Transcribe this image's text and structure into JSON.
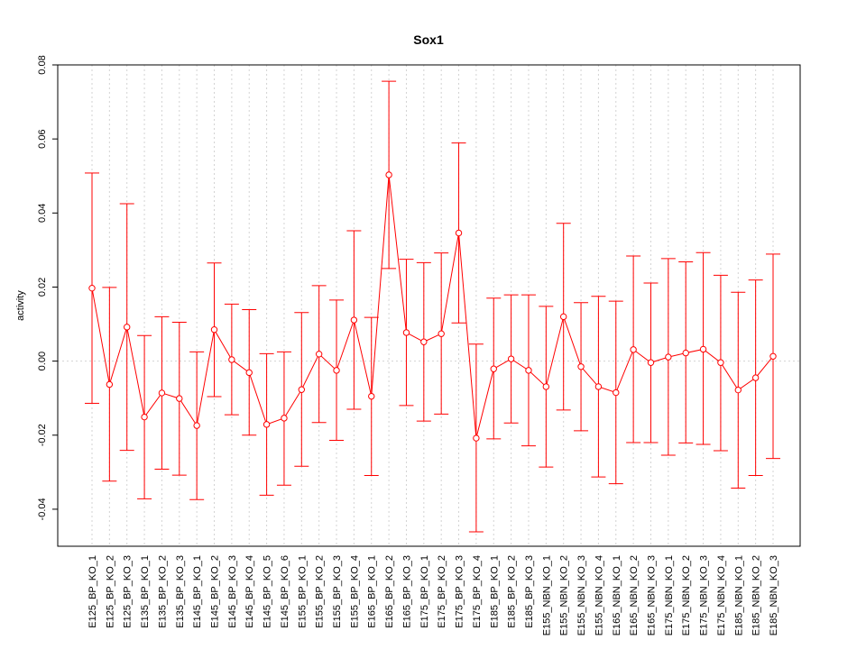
{
  "chart_data": {
    "type": "line",
    "title": "Sox1",
    "xlabel": "",
    "ylabel": "activity",
    "ylim": [
      -0.05,
      0.08
    ],
    "yticks": [
      -0.04,
      -0.02,
      0.0,
      0.02,
      0.04,
      0.06,
      0.08
    ],
    "ytick_labels": [
      "-0.04",
      "-0.02",
      "0.00",
      "0.02",
      "0.04",
      "0.06",
      "0.08"
    ],
    "grid": true,
    "error_bars": true,
    "color": "#ff0000",
    "categories": [
      "E125_BP_KO_1",
      "E125_BP_KO_2",
      "E125_BP_KO_3",
      "E135_BP_KO_1",
      "E135_BP_KO_2",
      "E135_BP_KO_3",
      "E145_BP_KO_1",
      "E145_BP_KO_2",
      "E145_BP_KO_3",
      "E145_BP_KO_4",
      "E145_BP_KO_5",
      "E145_BP_KO_6",
      "E155_BP_KO_1",
      "E155_BP_KO_2",
      "E155_BP_KO_3",
      "E155_BP_KO_4",
      "E165_BP_KO_1",
      "E165_BP_KO_2",
      "E165_BP_KO_3",
      "E175_BP_KO_1",
      "E175_BP_KO_2",
      "E175_BP_KO_3",
      "E175_BP_KO_4",
      "E185_BP_KO_1",
      "E185_BP_KO_2",
      "E185_BP_KO_3",
      "E155_NBN_KO_1",
      "E155_NBN_KO_2",
      "E155_NBN_KO_3",
      "E155_NBN_KO_4",
      "E165_NBN_KO_1",
      "E165_NBN_KO_2",
      "E165_NBN_KO_3",
      "E175_NBN_KO_1",
      "E175_NBN_KO_2",
      "E175_NBN_KO_3",
      "E175_NBN_KO_4",
      "E185_NBN_KO_1",
      "E185_NBN_KO_2",
      "E185_NBN_KO_3"
    ],
    "values": [
      0.0197,
      -0.0063,
      0.0092,
      -0.0151,
      -0.0086,
      -0.0101,
      -0.0174,
      0.0085,
      0.0004,
      -0.0031,
      -0.0171,
      -0.0154,
      -0.0077,
      0.0019,
      -0.0025,
      0.0111,
      -0.0095,
      0.0503,
      0.0077,
      0.0052,
      0.0074,
      0.0346,
      -0.0208,
      -0.0021,
      0.0006,
      -0.0025,
      -0.0069,
      0.012,
      -0.0015,
      -0.0069,
      -0.0085,
      0.0031,
      -0.0004,
      0.0011,
      0.0022,
      0.0032,
      -0.0004,
      -0.0078,
      -0.0045,
      0.0013
    ],
    "upper": [
      0.0508,
      0.0199,
      0.0425,
      0.0069,
      0.012,
      0.0105,
      0.0025,
      0.0265,
      0.0154,
      0.0139,
      0.002,
      0.0025,
      0.0131,
      0.0204,
      0.0165,
      0.0352,
      0.0118,
      0.0756,
      0.0275,
      0.0266,
      0.0292,
      0.0589,
      0.0046,
      0.017,
      0.0179,
      0.0179,
      0.0148,
      0.0372,
      0.0158,
      0.0175,
      0.0162,
      0.0284,
      0.0211,
      0.0277,
      0.0268,
      0.0293,
      0.0232,
      0.0186,
      0.0219,
      0.0289
    ],
    "lower": [
      -0.0114,
      -0.0324,
      -0.0241,
      -0.0372,
      -0.0292,
      -0.0308,
      -0.0374,
      -0.0096,
      -0.0145,
      -0.02,
      -0.0362,
      -0.0335,
      -0.0284,
      -0.0166,
      -0.0214,
      -0.013,
      -0.0309,
      0.025,
      -0.012,
      -0.0162,
      -0.0143,
      0.0103,
      -0.0461,
      -0.021,
      -0.0167,
      -0.0229,
      -0.0286,
      -0.0132,
      -0.0188,
      -0.0313,
      -0.0331,
      -0.022,
      -0.022,
      -0.0254,
      -0.0221,
      -0.0225,
      -0.0242,
      -0.0343,
      -0.0309,
      -0.0263
    ]
  }
}
